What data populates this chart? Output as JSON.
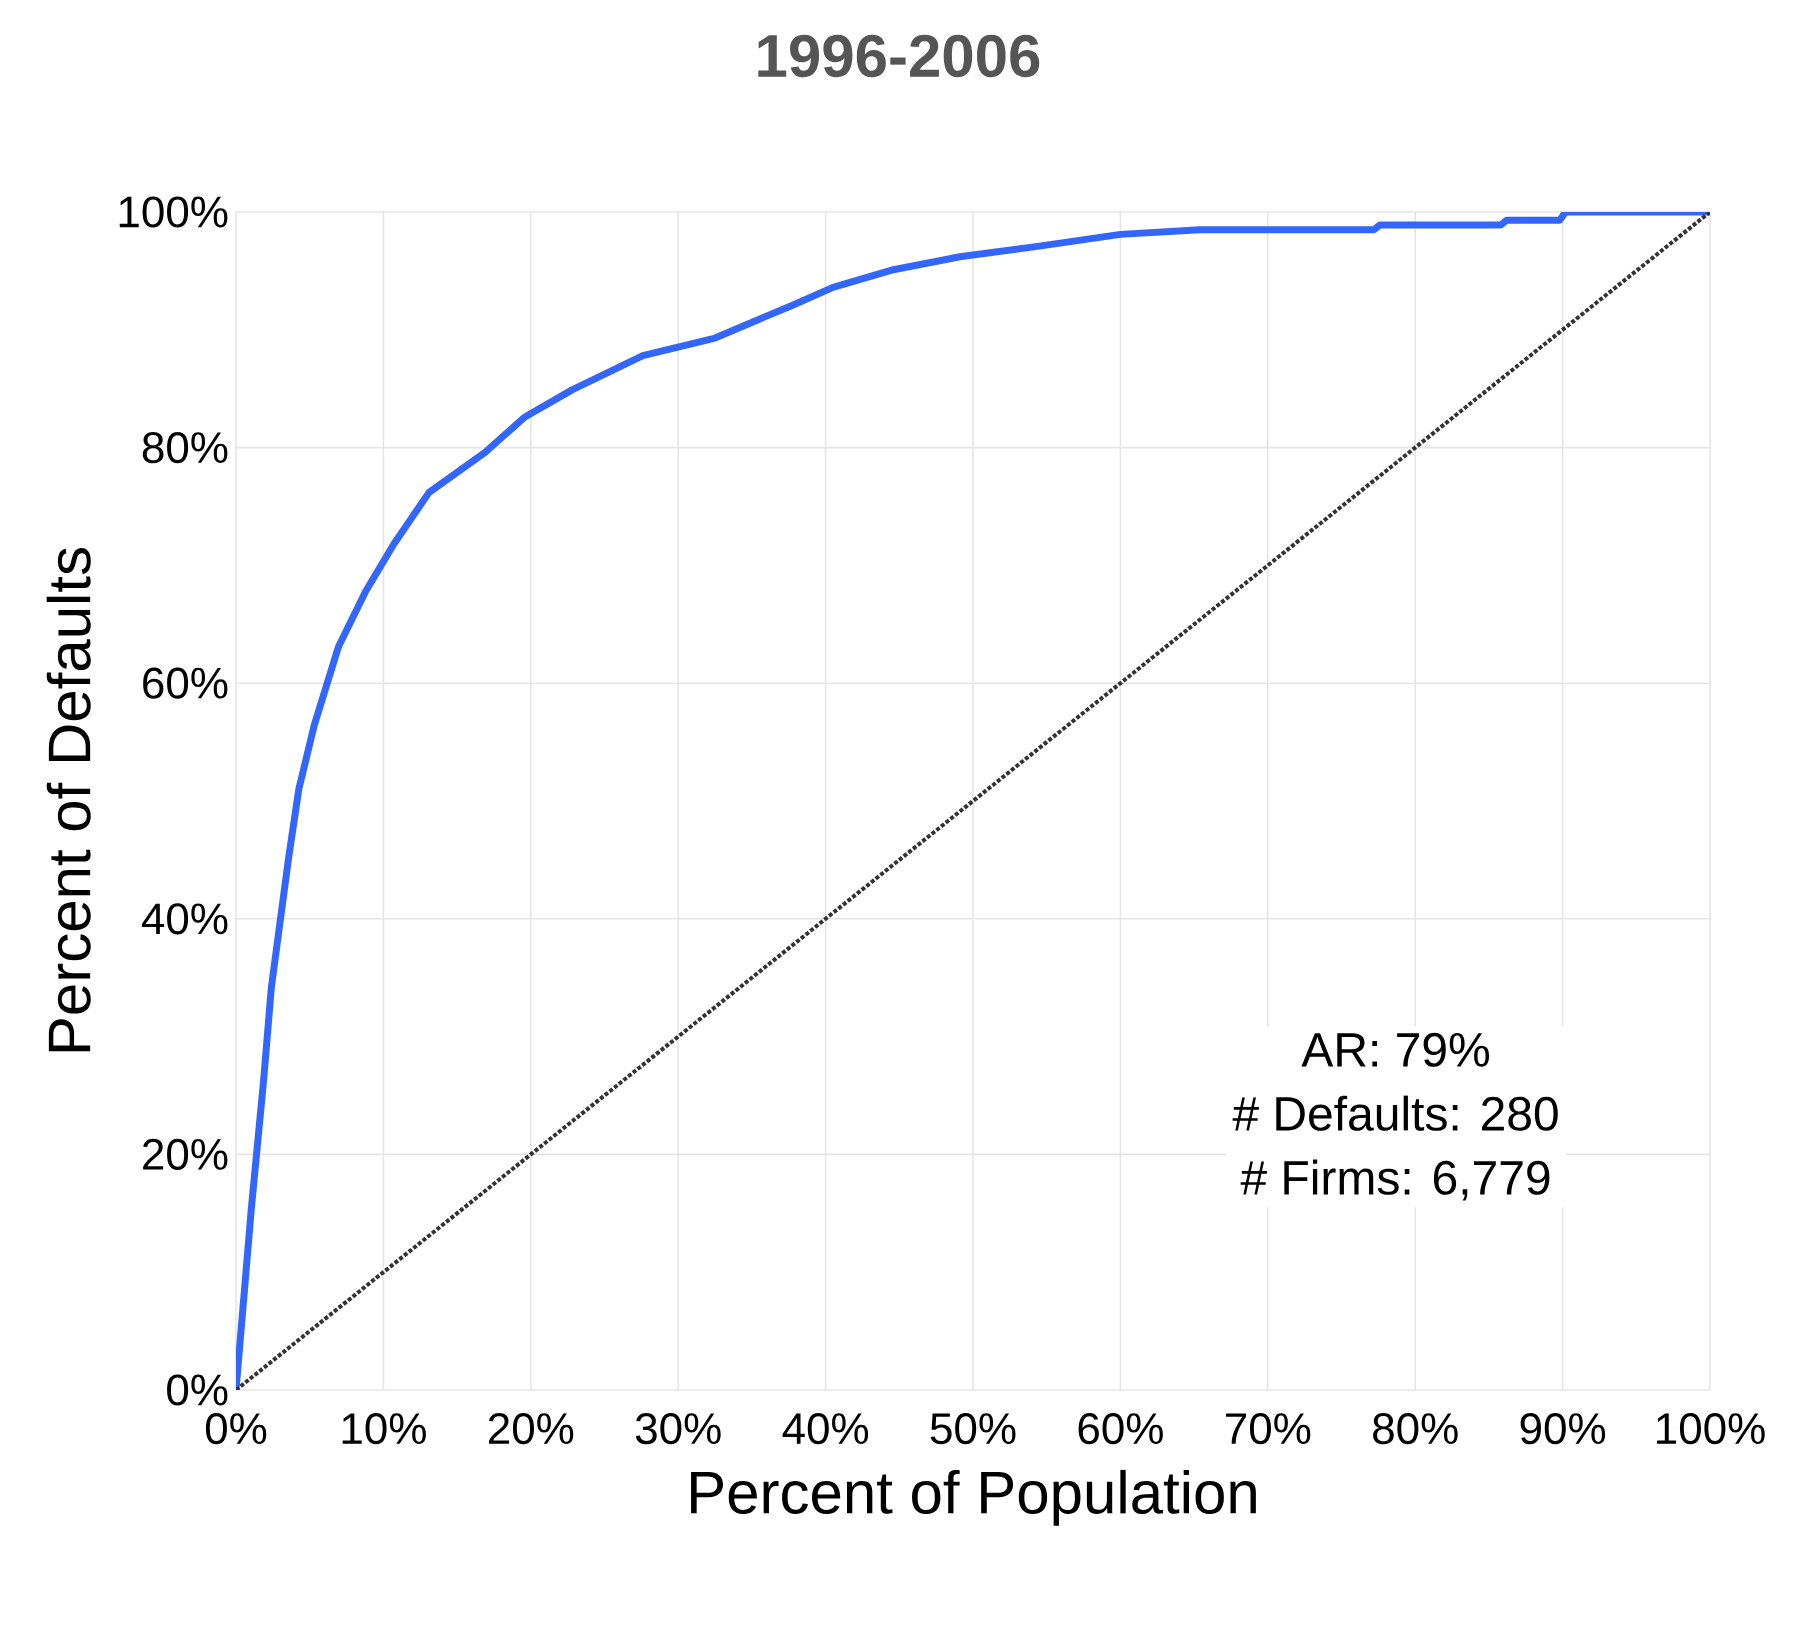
{
  "chart_data": {
    "type": "line",
    "title": "1996-2006",
    "xlabel": "Percent of Population",
    "ylabel": "Percent of Defaults",
    "annotations": [
      "AR: 79%",
      "# Defaults: 280",
      "# Firms: 6,779"
    ],
    "series": [
      {
        "color": "#3366ff",
        "line_style": "solid",
        "x": [
          0,
          1.04,
          1.86,
          2.4,
          3.55,
          4.26,
          5.3,
          6.95,
          8.8,
          10.7,
          13.1,
          16.9,
          19.6,
          22.8,
          27.6,
          32.5,
          35.5,
          37.8,
          40.5,
          44.6,
          49.1,
          54.5,
          60.0,
          65.4,
          77.2,
          77.6,
          85.8,
          86.2,
          89.8,
          90.2,
          100
        ],
        "values": [
          0,
          15.4,
          26.1,
          34.2,
          45.0,
          51.0,
          56.4,
          63.1,
          67.8,
          71.8,
          76.2,
          79.6,
          82.6,
          84.9,
          87.8,
          89.3,
          90.9,
          92.1,
          93.6,
          95.1,
          96.2,
          97.1,
          98.1,
          98.5,
          98.5,
          98.9,
          98.9,
          99.3,
          99.3,
          100,
          100
        ]
      },
      {
        "color": "#333333",
        "line_style": "dotted",
        "x": [
          0,
          100
        ],
        "values": [
          0,
          100
        ]
      }
    ],
    "xlim": [
      0,
      100
    ],
    "ylim": [
      0,
      100
    ],
    "xticks": [
      {
        "value": 0,
        "label": "0%"
      },
      {
        "value": 10,
        "label": "10%"
      },
      {
        "value": 20,
        "label": "20%"
      },
      {
        "value": 30,
        "label": "30%"
      },
      {
        "value": 40,
        "label": "40%"
      },
      {
        "value": 50,
        "label": "50%"
      },
      {
        "value": 60,
        "label": "60%"
      },
      {
        "value": 70,
        "label": "70%"
      },
      {
        "value": 80,
        "label": "80%"
      },
      {
        "value": 90,
        "label": "90%"
      },
      {
        "value": 100,
        "label": "100%"
      }
    ],
    "yticks": [
      {
        "value": 0,
        "label": "0%"
      },
      {
        "value": 20,
        "label": "20%"
      },
      {
        "value": 40,
        "label": "40%"
      },
      {
        "value": 60,
        "label": "60%"
      },
      {
        "value": 80,
        "label": "80%"
      },
      {
        "value": 100,
        "label": "100%"
      }
    ],
    "grid": true
  }
}
